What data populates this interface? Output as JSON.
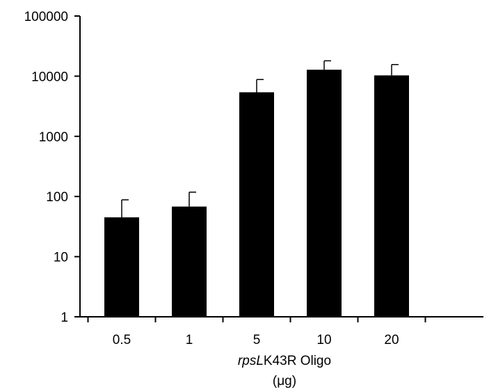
{
  "chart_data": {
    "type": "bar",
    "y_scale": "log",
    "ylim": [
      1,
      100000
    ],
    "y_ticks": [
      "1",
      "10",
      "100",
      "1000",
      "10000",
      "100000"
    ],
    "categories": [
      "0.5",
      "1",
      "5",
      "10",
      "20"
    ],
    "values": [
      45,
      68,
      5400,
      12800,
      10300
    ],
    "error_upper": [
      88,
      118,
      8800,
      18000,
      15600
    ],
    "xlabel_italic": "rpsL",
    "xlabel_rest": "K43R Oligo",
    "xlabel_unit": "(μg)",
    "bar_color": "#000000",
    "grid": false
  }
}
